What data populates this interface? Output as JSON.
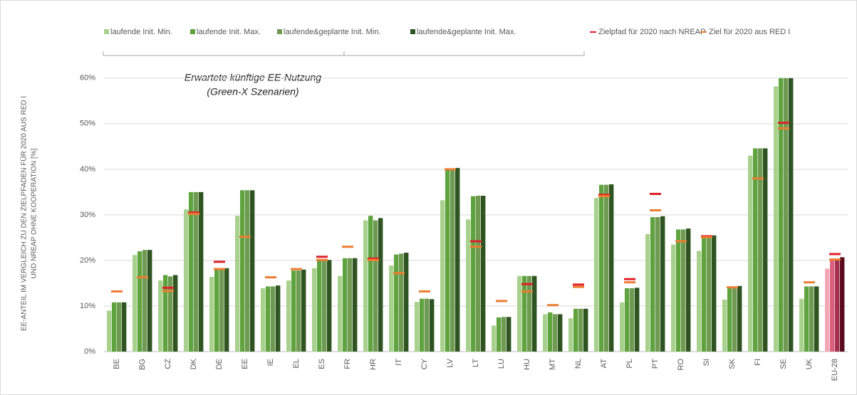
{
  "chart_data": {
    "type": "bar",
    "annotation": [
      "Erwartete künftige EE-Nutzung",
      "(Green-X Szenarien)"
    ],
    "y_label": [
      "EE-ANTEIL IM VERGLEICH ZU DEN ZIELPFADEN FÜR 2020 AUS RED I",
      "UND NREAP OHNE KOOPERATION [%]"
    ],
    "categories": [
      "BE",
      "BG",
      "CZ",
      "DK",
      "DE",
      "EE",
      "IE",
      "EL",
      "ES",
      "FR",
      "HR",
      "IT",
      "CY",
      "LV",
      "LT",
      "LU",
      "HU",
      "MT",
      "NL",
      "AT",
      "PL",
      "PT",
      "RO",
      "SI",
      "SK",
      "FI",
      "SE",
      "UK",
      "EU-28"
    ],
    "highlight_categories": [
      "EU-28"
    ],
    "series": [
      {
        "name": "laufende Init. Min.",
        "kind": "bar",
        "color": "#a9d18e",
        "highlight_color": "#f4a6b4",
        "values": [
          9,
          21.2,
          15.6,
          31.2,
          16.4,
          29.8,
          13.9,
          15.6,
          18.3,
          16.6,
          28.8,
          18.9,
          10.9,
          33.2,
          29,
          5.7,
          16.6,
          8.2,
          7.3,
          33.7,
          10.8,
          25.8,
          23.5,
          22.1,
          11.4,
          43,
          58.2,
          11.6,
          18.2
        ]
      },
      {
        "name": "laufende Init. Max.",
        "kind": "bar",
        "color": "#5fa33f",
        "highlight_color": "#d9607a",
        "values": [
          10.8,
          22,
          16.8,
          35,
          18.3,
          35.4,
          14.3,
          17.8,
          20,
          20.5,
          29.8,
          21.3,
          11.6,
          40.2,
          34.1,
          7.5,
          16.6,
          8.6,
          9.4,
          36.6,
          13.9,
          29.5,
          26.8,
          25.5,
          14.3,
          44.6,
          60,
          14.3,
          20.3
        ]
      },
      {
        "name": "laufende&geplante Init. Min.",
        "kind": "bar",
        "color": "#6f9a52",
        "highlight_color": "#a3304c",
        "values": [
          10.8,
          22.3,
          16.5,
          35,
          18.3,
          35.4,
          14.3,
          17.8,
          20,
          20.5,
          28.8,
          21.5,
          11.6,
          40.2,
          34.2,
          7.6,
          16.6,
          8.2,
          9.4,
          36.6,
          13.9,
          29.5,
          26.8,
          25.5,
          14.3,
          44.6,
          60,
          14.3,
          20.3
        ]
      },
      {
        "name": "laufende&geplante Init. Max.",
        "kind": "bar",
        "color": "#2f5421",
        "highlight_color": "#5c0a1e",
        "values": [
          10.8,
          22.3,
          16.8,
          35,
          18.3,
          35.4,
          14.5,
          18,
          20.1,
          20.5,
          29.3,
          21.7,
          11.5,
          40.3,
          34.2,
          7.6,
          16.6,
          8.2,
          9.4,
          36.7,
          14,
          29.7,
          27,
          25.5,
          14.4,
          44.6,
          60,
          14.3,
          20.7
        ]
      },
      {
        "name": "Zielpfad für 2020 nach NREAP",
        "kind": "marker",
        "color": "#e0202a",
        "values": [
          null,
          null,
          14,
          30.5,
          19.7,
          null,
          null,
          null,
          20.8,
          null,
          20.4,
          null,
          null,
          null,
          24.2,
          null,
          14.8,
          null,
          14.7,
          34.4,
          15.9,
          34.6,
          null,
          25.3,
          null,
          null,
          50.2,
          null,
          21.4
        ]
      },
      {
        "name": "Ziel für 2020 aus RED I",
        "kind": "marker",
        "color": "#ed7d31",
        "values": [
          13.2,
          16.3,
          13.3,
          30.2,
          18.1,
          25.2,
          16.3,
          18.1,
          20.1,
          23,
          20.1,
          17.2,
          13.2,
          40,
          23,
          11.1,
          13.2,
          10.2,
          14.2,
          34.1,
          15.2,
          31,
          24.2,
          25.1,
          14.1,
          38,
          49,
          15.2,
          20.2
        ]
      }
    ],
    "ylim": [
      0,
      62
    ],
    "yticks": [
      {
        "value": 0,
        "label": "0%"
      },
      {
        "value": 10,
        "label": "10%"
      },
      {
        "value": 20,
        "label": "20%"
      },
      {
        "value": 30,
        "label": "30%"
      },
      {
        "value": 40,
        "label": "40%"
      },
      {
        "value": 50,
        "label": "50%"
      },
      {
        "value": 60,
        "label": "60%"
      }
    ],
    "grid": true
  }
}
